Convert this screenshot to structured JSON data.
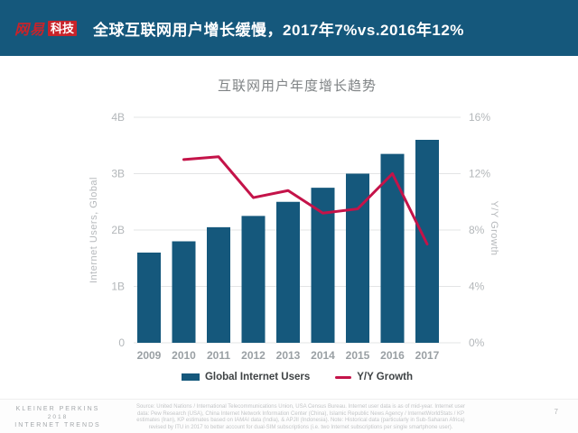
{
  "header": {
    "logo_text": "网易",
    "logo_badge": "科技",
    "title": "全球互联网用户增长缓慢，2017年7%vs.2016年12%"
  },
  "chart": {
    "legend": [
      "Global Internet Users",
      "Y/Y Growth"
    ]
  },
  "chart_data": {
    "type": "combo",
    "title": "互联网用户年度增长趋势",
    "categories": [
      "2009",
      "2010",
      "2011",
      "2012",
      "2013",
      "2014",
      "2015",
      "2016",
      "2017"
    ],
    "series": [
      {
        "name": "Global Internet Users",
        "type": "bar",
        "axis": "left",
        "unit": "B",
        "values": [
          1.6,
          1.8,
          2.05,
          2.25,
          2.5,
          2.75,
          3.0,
          3.35,
          3.6
        ]
      },
      {
        "name": "Y/Y Growth",
        "type": "line",
        "axis": "right",
        "unit": "%",
        "values": [
          null,
          13,
          13.2,
          10.3,
          10.8,
          9.2,
          9.5,
          12,
          7
        ]
      }
    ],
    "y_left": {
      "title": "Internet Users, Global",
      "ticks": [
        "4B",
        "3B",
        "2B",
        "1B",
        "0"
      ],
      "range": [
        0,
        4
      ]
    },
    "y_right": {
      "title": "Y/Y Growth",
      "ticks": [
        "16%",
        "12%",
        "8%",
        "4%",
        "0%"
      ],
      "range": [
        0,
        16
      ]
    },
    "grid": true,
    "legend_position": "bottom"
  },
  "footer": {
    "brand": [
      "KLEINER PERKINS",
      "2018",
      "INTERNET TRENDS"
    ],
    "source": [
      "Source: United Nations / International Telecommunications Union, USA Census Bureau. Internet user data is as of mid-year. Internet user",
      "data: Pew Research (USA), China Internet Network Information Center (China), Islamic Republic News Agency / InternetWorldStats / KP",
      "estimates (Iran), KP estimates based on IAMAI data (India), & APJII (Indonesia). Note: Historical data (particularly in Sub-Saharan Africa)",
      "revised by ITU in 2017 to better account for dual-SIM subscriptions (i.e. two Internet subscriptions per single smartphone user)."
    ],
    "page": "7"
  },
  "colors": {
    "header_bg": "#15587c",
    "bar": "#15587c",
    "line": "#c41349",
    "logo_red": "#c8232a"
  }
}
